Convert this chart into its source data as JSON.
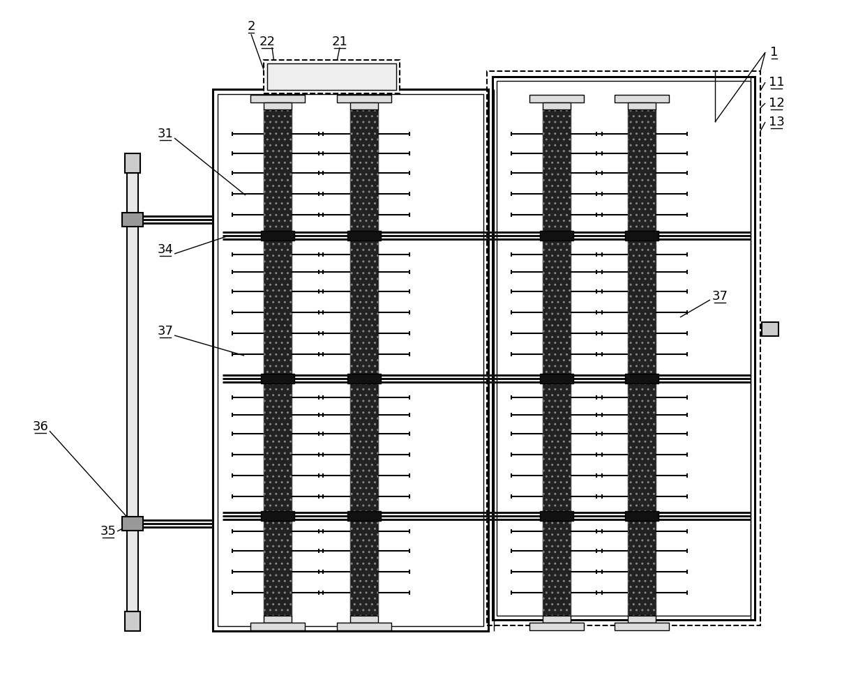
{
  "bg_color": "#ffffff",
  "fig_width": 12.4,
  "fig_height": 9.81,
  "dpi": 100,
  "lw_thick": 2.2,
  "lw_med": 1.5,
  "lw_thin": 1.0,
  "lw_hair": 0.7,
  "col_fc": "#1a1a1a",
  "frame_fc": "#ffffff",
  "label_fs": 13
}
